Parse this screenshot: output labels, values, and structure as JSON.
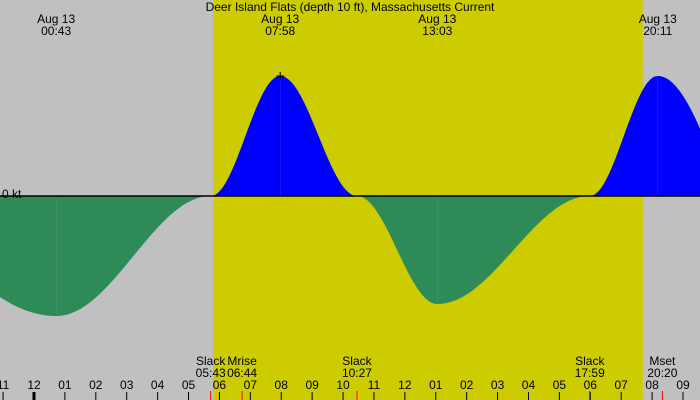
{
  "chart_data": {
    "type": "current",
    "title": "Deer Island Flats (depth 10 ft), Massachusetts Current",
    "zero_label": "0 kt",
    "x": [
      "00:43",
      "05:43",
      "07:58",
      "10:27",
      "13:03",
      "17:59",
      "20:11"
    ],
    "values": [
      -1.0,
      0,
      1.0,
      0,
      -0.9,
      0,
      1.0
    ],
    "event_labels": [
      "Aug 13",
      "Slack",
      "Aug 13",
      "Slack",
      "Aug 13",
      "Slack",
      "Aug 13"
    ],
    "label_positions": [
      "top",
      "bottom",
      "top",
      "bottom",
      "top",
      "bottom",
      "top"
    ],
    "moon_events": [
      {
        "label": "Mrise",
        "time": "06:44"
      },
      {
        "label": "Mset",
        "time": "20:20"
      }
    ],
    "daylight": [
      "05:48",
      "19:42"
    ],
    "xlim": [
      -1.1,
      21.55
    ],
    "ylim": [
      -1.5,
      1.5
    ],
    "xticks": [
      {
        "value": -1,
        "label": "11"
      },
      {
        "value": 0,
        "label": "12"
      },
      {
        "value": 1,
        "label": "01"
      },
      {
        "value": 2,
        "label": "02"
      },
      {
        "value": 3,
        "label": "03"
      },
      {
        "value": 4,
        "label": "04"
      },
      {
        "value": 5,
        "label": "05"
      },
      {
        "value": 6,
        "label": "06"
      },
      {
        "value": 7,
        "label": "07"
      },
      {
        "value": 8,
        "label": "08"
      },
      {
        "value": 9,
        "label": "09"
      },
      {
        "value": 10,
        "label": "10"
      },
      {
        "value": 11,
        "label": "11"
      },
      {
        "value": 12,
        "label": "12"
      },
      {
        "value": 13,
        "label": "01"
      },
      {
        "value": 14,
        "label": "02"
      },
      {
        "value": 15,
        "label": "03"
      },
      {
        "value": 16,
        "label": "04"
      },
      {
        "value": 17,
        "label": "05"
      },
      {
        "value": 18,
        "label": "06"
      },
      {
        "value": 19,
        "label": "07"
      },
      {
        "value": 20,
        "label": "08"
      },
      {
        "value": 21,
        "label": "09"
      }
    ],
    "colors": {
      "background": "#c0c0c0",
      "daylight": "#cccc00",
      "flood": "#0000ff",
      "ebb": "#2e8b57",
      "event_tick": "#ff0000"
    }
  }
}
